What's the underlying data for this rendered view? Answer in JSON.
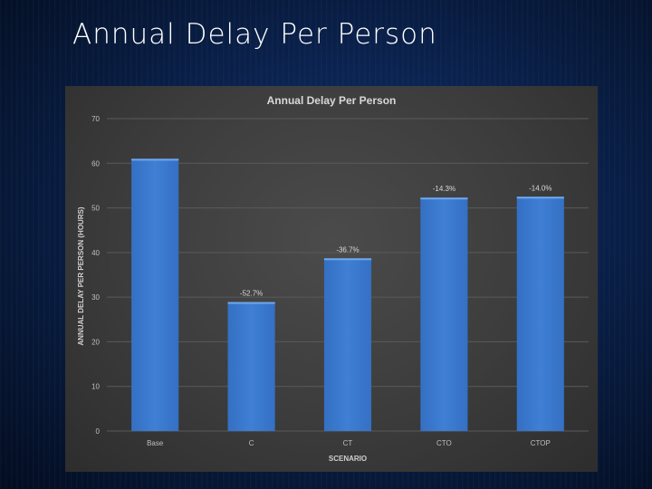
{
  "slide": {
    "title": "Annual Delay Per Person"
  },
  "colors": {
    "bar_fill": "#3f7fd4",
    "bar_top": "#6fa8ee",
    "chart_background": "#404040",
    "gridline": "#5a5a5a"
  },
  "chart_data": {
    "type": "bar",
    "title": "Annual Delay Per Person",
    "xlabel": "SCENARIO",
    "ylabel": "ANNUAL DELAY PER PERSON (HOURS)",
    "categories": [
      "Base",
      "C",
      "CT",
      "CTO",
      "CTOP"
    ],
    "values": [
      61,
      28.9,
      38.7,
      52.3,
      52.5
    ],
    "data_labels": [
      "",
      "-52.7%",
      "-36.7%",
      "-14.3%",
      "-14.0%"
    ],
    "ylim": [
      0,
      70
    ],
    "yticks": [
      "0",
      "10",
      "20",
      "30",
      "40",
      "50",
      "60",
      "70"
    ],
    "grid": true,
    "legend": "none"
  }
}
